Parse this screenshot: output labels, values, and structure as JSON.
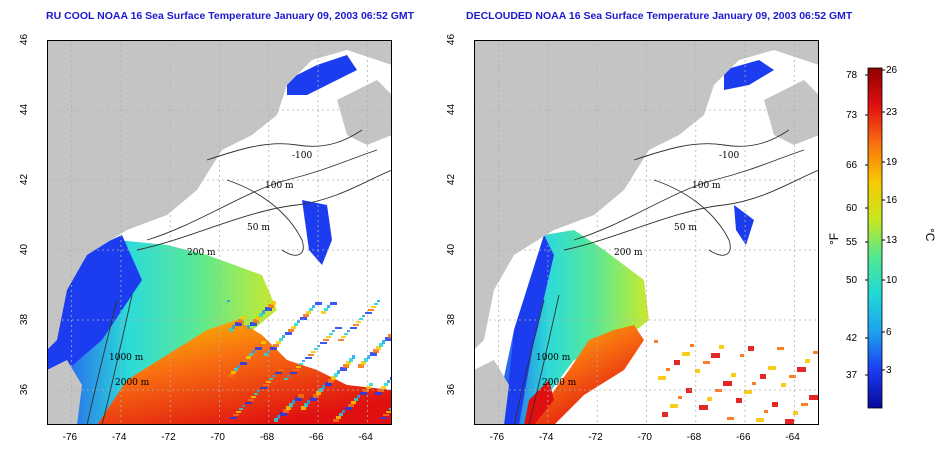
{
  "panels": [
    {
      "id": "left",
      "title": "RU COOL NOAA 16 Sea Surface Temperature January 09, 2003 06:52 GMT"
    },
    {
      "id": "right",
      "title": "DECLOUDED NOAA 16 Sea Surface Temperature January 09, 2003 06:52 GMT"
    }
  ],
  "axes": {
    "lon_ticks": [
      "-76",
      "-74",
      "-72",
      "-70",
      "-68",
      "-66",
      "-64"
    ],
    "lat_ticks": [
      "46",
      "44",
      "42",
      "40",
      "38",
      "36"
    ],
    "lon_range": [
      -77,
      -63
    ],
    "lat_range": [
      35,
      46
    ]
  },
  "contour_labels": [
    "-100",
    "100 m",
    "50 m",
    "200 m",
    "1000 m",
    "2000 m"
  ],
  "colorbar": {
    "f_ticks": [
      "78",
      "73",
      "66",
      "60",
      "55",
      "50",
      "42",
      "37"
    ],
    "c_ticks": [
      "26",
      "23",
      "19",
      "16",
      "13",
      "10",
      "6",
      "3"
    ],
    "f_unit": "°F",
    "c_unit": "°C",
    "colors": [
      "#08089a",
      "#1c3cf0",
      "#1ea0f0",
      "#20d8d8",
      "#50e890",
      "#c8e820",
      "#f8c800",
      "#f87010",
      "#e01010",
      "#900000"
    ]
  },
  "colors": {
    "land": "#c4c4c4",
    "water_bg": "#ffffff",
    "grid": "#b0b0b0",
    "contour": "#303030"
  }
}
